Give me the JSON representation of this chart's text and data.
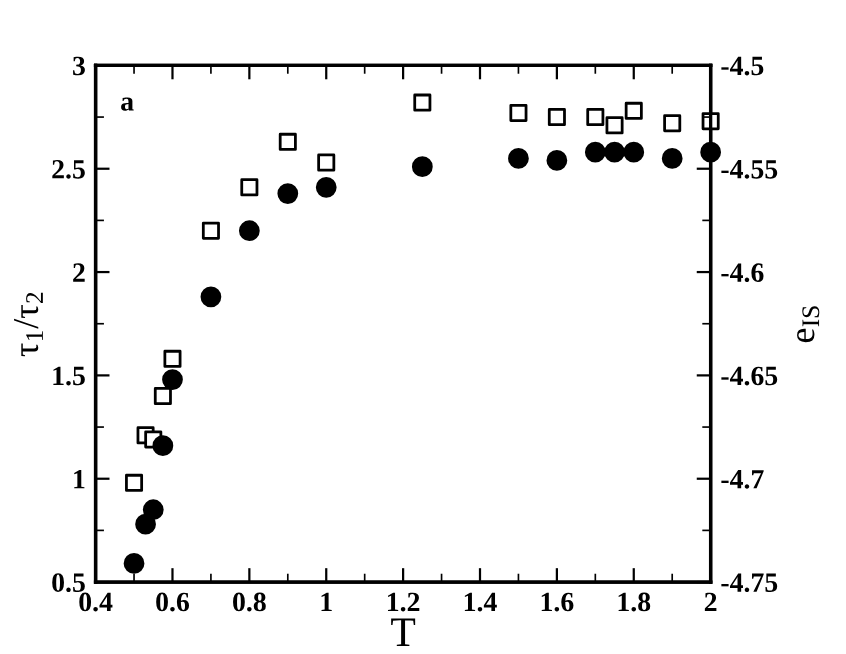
{
  "chart_data": {
    "type": "scatter",
    "xlabel": "T",
    "ylabel": "τ$_{1}$/τ$_{2}$",
    "y2label": "e$_{IS}$",
    "annotations": [
      "a"
    ],
    "xlim": [
      0.4,
      2
    ],
    "xticks": [
      0.4,
      0.6,
      0.8,
      1,
      1.2,
      1.4,
      1.6,
      1.8,
      2
    ],
    "ylim": [
      0.5,
      3
    ],
    "yticks": [
      0.5,
      1,
      1.5,
      2,
      2.5,
      3
    ],
    "y2lim": [
      -4.75,
      -4.5
    ],
    "y2ticks": [
      -4.75,
      -4.7,
      -4.65,
      -4.6,
      -4.55,
      -4.5
    ],
    "grid": false,
    "legend": false,
    "series": [
      {
        "color": "#000000",
        "marker": "square",
        "x": [
          0.5,
          0.53,
          0.55,
          0.575,
          0.6,
          0.7,
          0.8,
          0.9,
          1.0,
          1.25,
          1.5,
          1.6,
          1.7,
          1.75,
          1.8,
          1.9,
          2.0
        ],
        "values": [
          0.98,
          1.21,
          1.19,
          1.4,
          1.58,
          2.2,
          2.41,
          2.63,
          2.53,
          2.82,
          2.77,
          2.75,
          2.75,
          2.71,
          2.78,
          2.72,
          2.73
        ]
      },
      {
        "color": "#000000",
        "marker": "circle",
        "axis": "y2",
        "x": [
          0.5,
          0.53,
          0.55,
          0.575,
          0.6,
          0.7,
          0.8,
          0.9,
          1.0,
          1.25,
          1.5,
          1.6,
          1.7,
          1.75,
          1.8,
          1.9,
          2.0
        ],
        "values": [
          -4.741,
          -4.722,
          -4.715,
          -4.684,
          -4.652,
          -4.612,
          -4.58,
          -4.562,
          -4.559,
          -4.549,
          -4.545,
          -4.546,
          -4.542,
          -4.542,
          -4.542,
          -4.545,
          -4.542
        ]
      }
    ]
  }
}
